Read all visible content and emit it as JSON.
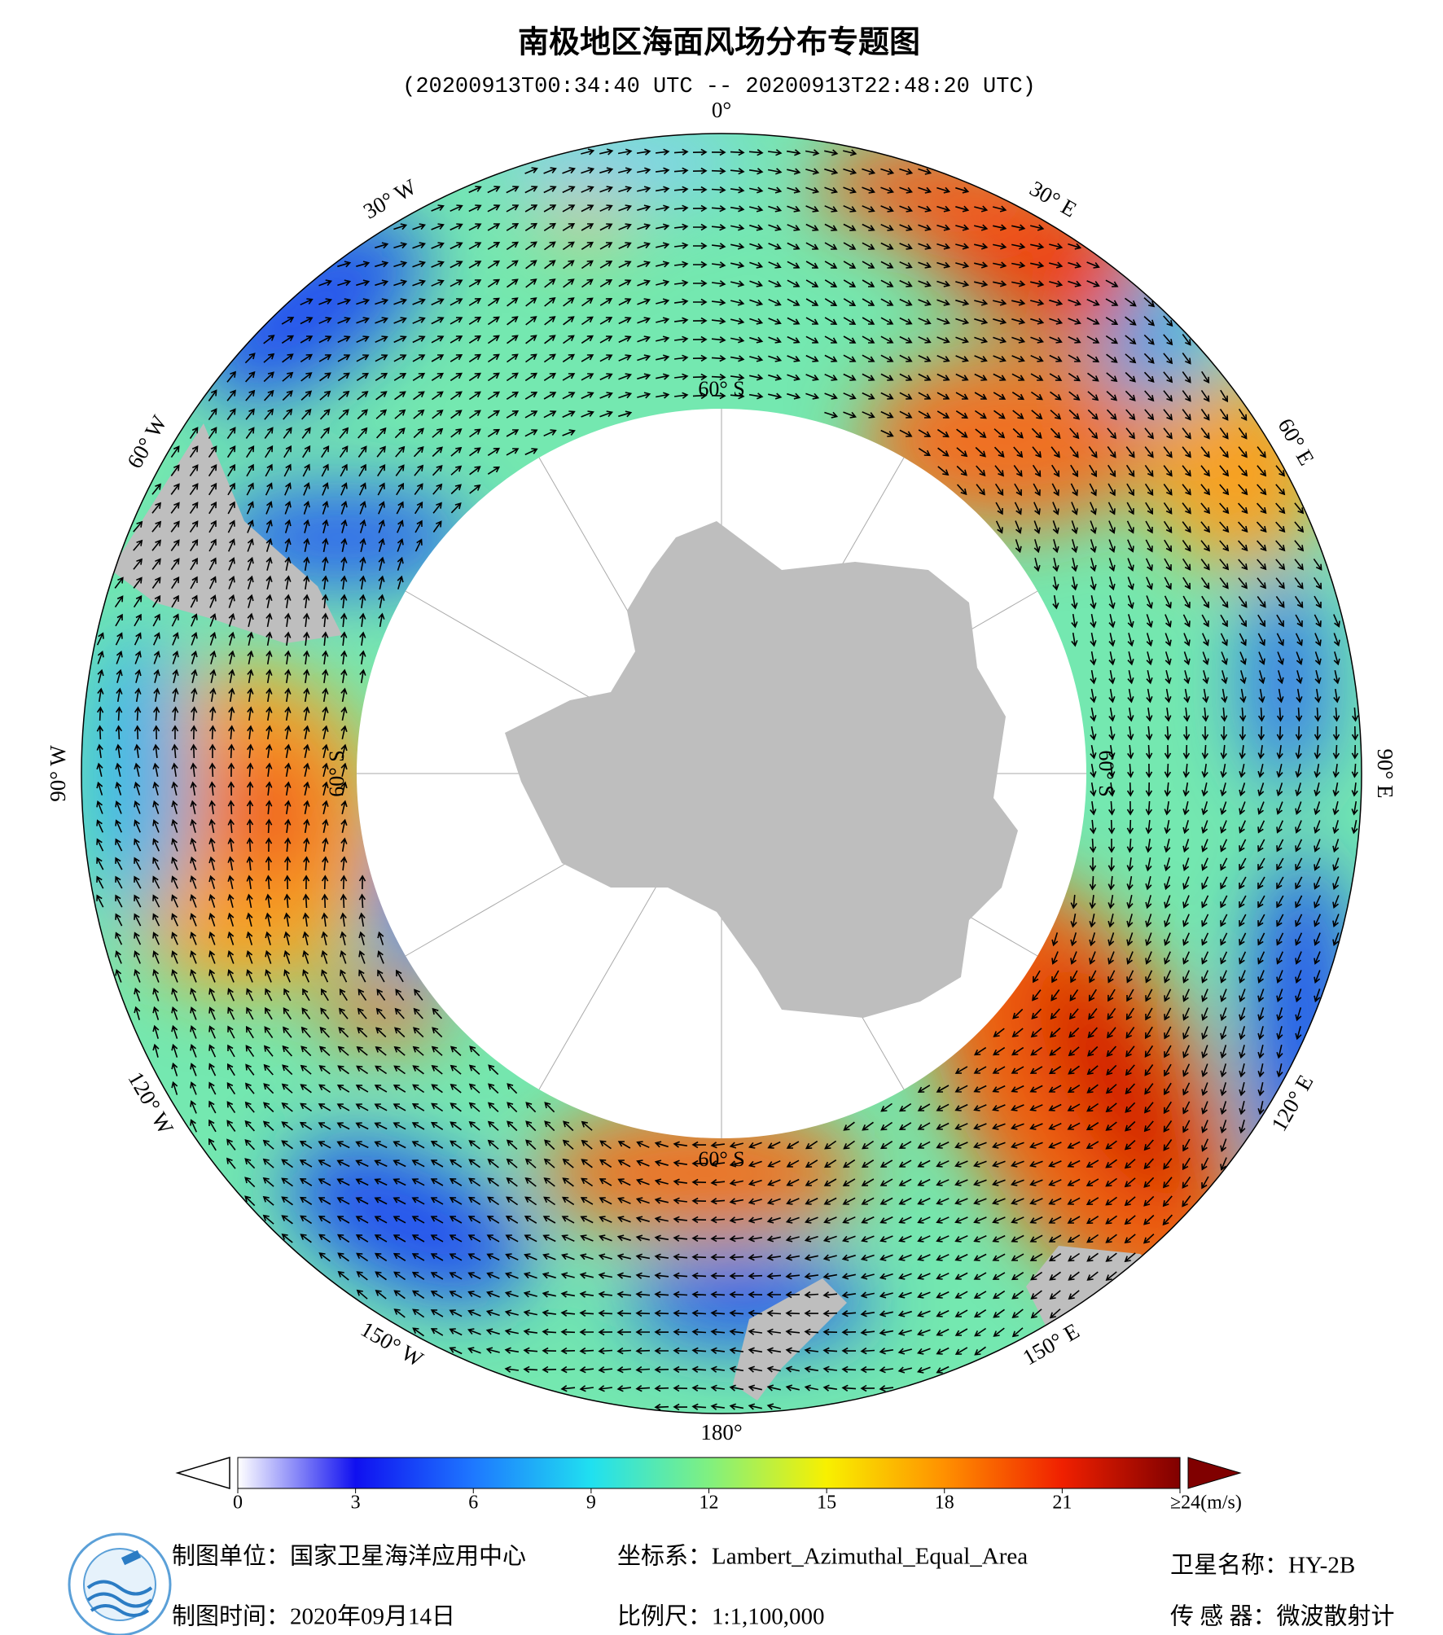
{
  "header": {
    "title": "南极地区海面风场分布专题图",
    "subtitle": "(20200913T00:34:40 UTC -- 20200913T22:48:20 UTC)"
  },
  "map": {
    "longitude_labels": [
      "0°",
      "30° E",
      "60° E",
      "90° E",
      "120° E",
      "150° E",
      "180°",
      "150° W",
      "120° W",
      "90° W",
      "60° W",
      "30° W"
    ],
    "latitude_labels": [
      "60° S",
      "60° S",
      "60° S",
      "60° S"
    ]
  },
  "colorbar": {
    "range": [
      0,
      24
    ],
    "ticks": [
      0,
      3,
      6,
      9,
      12,
      15,
      18,
      21,
      {
        "value": 24,
        "label": "≥24(m/s)"
      }
    ],
    "colors": [
      "#ffffff",
      "#1010f0",
      "#1e78ff",
      "#20e0f0",
      "#80f080",
      "#f8f000",
      "#ff9000",
      "#f02000",
      "#800000"
    ]
  },
  "footer": {
    "unit": "制图单位：国家卫星海洋应用中心",
    "date": "制图时间：2020年09月14日",
    "projection": "坐标系：Lambert_Azimuthal_Equal_Area",
    "scale": "比例尺：1:1,100,000",
    "satellite": "卫星名称：HY-2B",
    "sensor": "传 感 器：微波散射计"
  }
}
